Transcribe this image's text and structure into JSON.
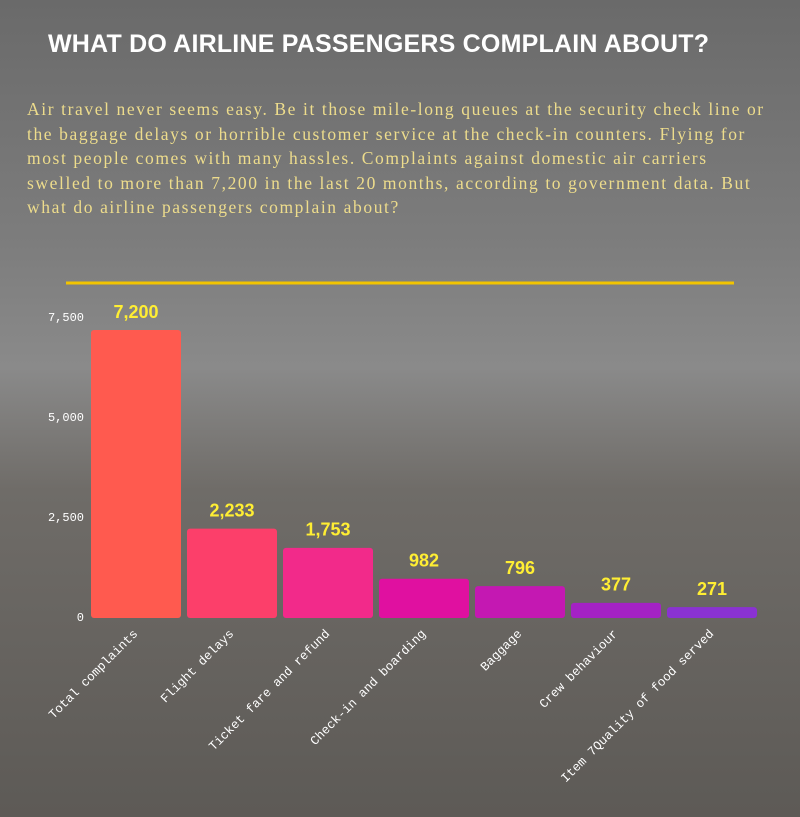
{
  "chart_data": {
    "type": "bar",
    "title": "WHAT DO AIRLINE PASSENGERS COMPLAIN ABOUT?",
    "subtitle": "Air travel never seems easy. Be it those mile-long queues at the security check line or the baggage delays or horrible customer service at the check-in counters. Flying for most people comes with many hassles.  Complaints against domestic air carriers swelled to more than 7,200 in the last 20 months, according to government data. But what do airline passengers complain about?",
    "categories": [
      "Total complaints",
      "Flight delays",
      "Ticket fare and refund",
      "Check-in and boarding",
      "Baggage",
      "Crew behaviour",
      "Item 7Quality of food served"
    ],
    "values": [
      7200,
      2233,
      1753,
      982,
      796,
      377,
      271
    ],
    "value_labels": [
      "7,200",
      "2,233",
      "1,753",
      "982",
      "796",
      "377",
      "271"
    ],
    "colors": [
      "#ff5a4f",
      "#fc3f6a",
      "#f22a8a",
      "#e010a0",
      "#c418b2",
      "#a422c4",
      "#8a32d2"
    ],
    "ylim": [
      0,
      7500
    ],
    "yticks": [
      0,
      {
        "value": 2500,
        "label": "2,500"
      },
      {
        "value": 5000,
        "label": "5,000"
      },
      {
        "value": 7500,
        "label": "7,500"
      }
    ],
    "grid": false
  }
}
